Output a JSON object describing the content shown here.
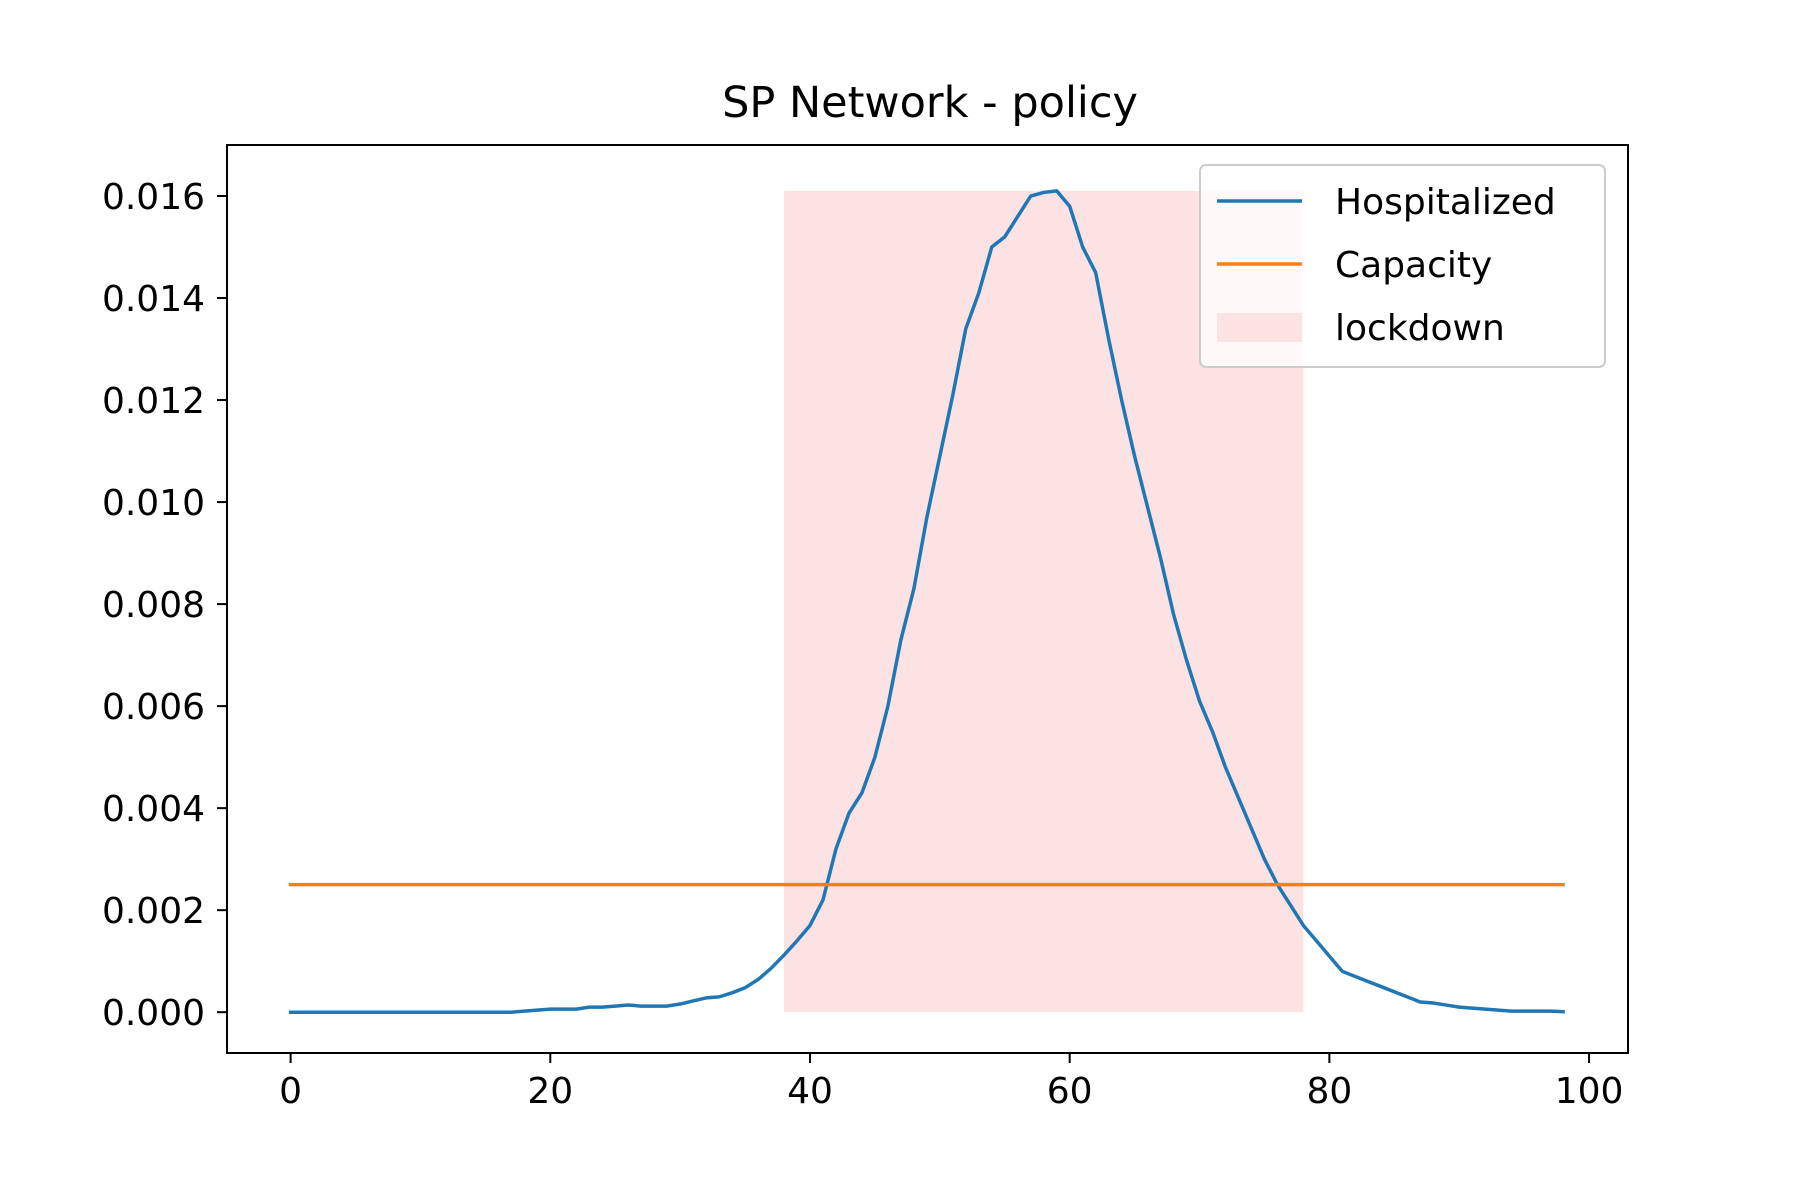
{
  "chart_data": {
    "type": "line",
    "title": "SP Network - policy",
    "xlabel": "",
    "ylabel": "",
    "xlim": [
      -4.9,
      103.0
    ],
    "ylim": [
      -0.0008,
      0.017
    ],
    "x_ticks": [
      0,
      20,
      40,
      60,
      80,
      100
    ],
    "x_tick_labels": [
      "0",
      "20",
      "40",
      "60",
      "80",
      "100"
    ],
    "y_ticks": [
      0.0,
      0.002,
      0.004,
      0.006,
      0.008,
      0.01,
      0.012,
      0.014,
      0.016
    ],
    "y_tick_labels": [
      "0.000",
      "0.002",
      "0.004",
      "0.006",
      "0.008",
      "0.010",
      "0.012",
      "0.014",
      "0.016"
    ],
    "grid": false,
    "legend_position": "top-right",
    "legend": [
      {
        "label": "Hospitalized",
        "kind": "line",
        "color": "#1f77b4"
      },
      {
        "label": "Capacity",
        "kind": "line",
        "color": "#ff7f0e"
      },
      {
        "label": "lockdown",
        "kind": "patch",
        "color": "#fde2e4"
      }
    ],
    "lockdown": {
      "x_start": 38,
      "x_end": 78,
      "y_top": 0.0161,
      "color": "#fde2e4"
    },
    "series": [
      {
        "name": "Hospitalized",
        "color": "#1f77b4",
        "x": [
          0,
          1,
          2,
          3,
          4,
          5,
          6,
          7,
          8,
          9,
          10,
          11,
          12,
          13,
          14,
          15,
          16,
          17,
          18,
          19,
          20,
          21,
          22,
          23,
          24,
          25,
          26,
          27,
          28,
          29,
          30,
          31,
          32,
          33,
          34,
          35,
          36,
          37,
          38,
          39,
          40,
          41,
          42,
          43,
          44,
          45,
          46,
          47,
          48,
          49,
          50,
          51,
          52,
          53,
          54,
          55,
          56,
          57,
          58,
          59,
          60,
          61,
          62,
          63,
          64,
          65,
          66,
          67,
          68,
          69,
          70,
          71,
          72,
          73,
          74,
          75,
          76,
          77,
          78,
          79,
          80,
          81,
          82,
          83,
          84,
          85,
          86,
          87,
          88,
          89,
          90,
          91,
          92,
          93,
          94,
          95,
          96,
          97,
          98
        ],
        "y": [
          0.0,
          0.0,
          0.0,
          0.0,
          0.0,
          0.0,
          0.0,
          0.0,
          0.0,
          0.0,
          0.0,
          0.0,
          0.0,
          0.0,
          0.0,
          0.0,
          0.0,
          0.0,
          2e-05,
          4e-05,
          6e-05,
          6e-05,
          6e-05,
          0.0001,
          0.0001,
          0.00012,
          0.00014,
          0.00012,
          0.00012,
          0.00012,
          0.00016,
          0.00022,
          0.00028,
          0.0003,
          0.00038,
          0.00048,
          0.00064,
          0.00086,
          0.00112,
          0.0014,
          0.0017,
          0.0022,
          0.0032,
          0.0039,
          0.0043,
          0.005,
          0.006,
          0.0073,
          0.0083,
          0.0097,
          0.0109,
          0.0121,
          0.0134,
          0.0141,
          0.015,
          0.0152,
          0.0156,
          0.016,
          0.01607,
          0.0161,
          0.0158,
          0.015,
          0.0145,
          0.0132,
          0.012,
          0.0109,
          0.0099,
          0.0089,
          0.0078,
          0.0069,
          0.0061,
          0.0055,
          0.0048,
          0.0042,
          0.0036,
          0.003,
          0.0025,
          0.0021,
          0.0017,
          0.0014,
          0.0011,
          0.0008,
          0.0007,
          0.0006,
          0.0005,
          0.0004,
          0.0003,
          0.0002,
          0.00018,
          0.00014,
          0.0001,
          8e-05,
          6e-05,
          4e-05,
          2e-05,
          2e-05,
          2e-05,
          2e-05,
          1e-05
        ]
      },
      {
        "name": "Capacity",
        "color": "#ff7f0e",
        "x": [
          0,
          98
        ],
        "y": [
          0.0025,
          0.0025
        ]
      }
    ]
  }
}
